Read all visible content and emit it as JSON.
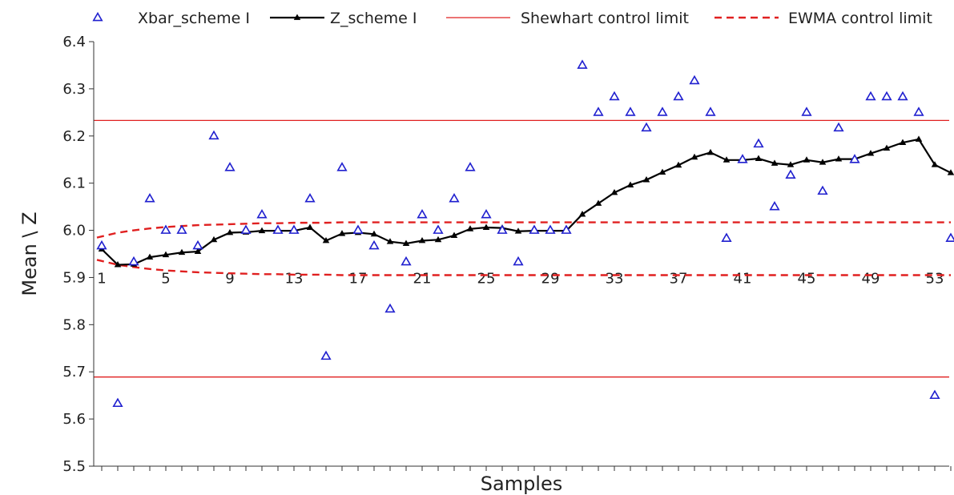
{
  "chart_data": {
    "type": "line",
    "xlabel": "Samples",
    "ylabel": "Mean \\ Z",
    "ylim": [
      5.5,
      6.4
    ],
    "xlim": [
      1,
      54
    ],
    "y_ticks": [
      "5.5",
      "5.6",
      "5.7",
      "5.8",
      "5.9",
      "6.0",
      "6.1",
      "6.2",
      "6.3",
      "6.4"
    ],
    "x_ticks": [
      1,
      5,
      9,
      13,
      17,
      21,
      25,
      29,
      33,
      37,
      41,
      45,
      49,
      53
    ],
    "legend_position": "top",
    "series": [
      {
        "name": "Xbar_scheme I",
        "style": "markers",
        "marker": "open-triangle",
        "color": "#1f1fcf",
        "x": [
          1,
          2,
          3,
          4,
          5,
          6,
          7,
          8,
          9,
          10,
          11,
          12,
          13,
          14,
          15,
          16,
          17,
          18,
          19,
          20,
          21,
          22,
          23,
          24,
          25,
          26,
          27,
          28,
          29,
          30,
          31,
          32,
          33,
          34,
          35,
          36,
          37,
          38,
          39,
          40,
          41,
          42,
          43,
          44,
          45,
          46,
          47,
          48,
          49,
          50,
          51,
          52,
          53,
          54
        ],
        "values": [
          5.967,
          5.633,
          5.933,
          6.067,
          6.0,
          6.0,
          5.967,
          6.2,
          6.133,
          6.0,
          6.033,
          6.0,
          6.0,
          6.067,
          5.733,
          6.133,
          6.0,
          5.967,
          5.833,
          5.933,
          6.033,
          6.0,
          6.067,
          6.133,
          6.033,
          6.0,
          5.933,
          6.0,
          6.0,
          6.0,
          6.35,
          6.25,
          6.283,
          6.25,
          6.217,
          6.25,
          6.283,
          6.317,
          6.25,
          5.983,
          6.15,
          6.183,
          6.05,
          6.117,
          6.25,
          6.083,
          6.217,
          6.15,
          6.283,
          6.283,
          6.283,
          6.25,
          5.65,
          5.983
        ]
      },
      {
        "name": "Z_scheme I",
        "style": "line-markers",
        "marker": "filled-triangle",
        "color": "#000000",
        "x": [
          1,
          2,
          3,
          4,
          5,
          6,
          7,
          8,
          9,
          10,
          11,
          12,
          13,
          14,
          15,
          16,
          17,
          18,
          19,
          20,
          21,
          22,
          23,
          24,
          25,
          26,
          27,
          28,
          29,
          30,
          31,
          32,
          33,
          34,
          35,
          36,
          37,
          38,
          39,
          40,
          41,
          42,
          43,
          44,
          45,
          46,
          47,
          48,
          49,
          50,
          51,
          52,
          53,
          54
        ],
        "values": [
          5.96,
          5.927,
          5.928,
          5.943,
          5.948,
          5.953,
          5.955,
          5.98,
          5.995,
          5.996,
          5.999,
          5.999,
          5.999,
          6.006,
          5.978,
          5.993,
          5.995,
          5.992,
          5.976,
          5.972,
          5.978,
          5.98,
          5.989,
          6.003,
          6.006,
          6.005,
          5.998,
          5.999,
          5.999,
          5.999,
          6.034,
          6.057,
          6.08,
          6.096,
          6.107,
          6.123,
          6.138,
          6.155,
          6.165,
          6.149,
          6.149,
          6.152,
          6.142,
          6.139,
          6.149,
          6.144,
          6.151,
          6.151,
          6.163,
          6.174,
          6.186,
          6.193,
          6.139,
          6.122
        ]
      },
      {
        "name": "Shewhart control limit",
        "style": "line",
        "color": "#e02020",
        "ucl": 6.233,
        "lcl": 5.689
      },
      {
        "name": "EWMA control limit",
        "style": "dashed",
        "color": "#e02020",
        "x": [
          1,
          2,
          3,
          4,
          5,
          6,
          7,
          8,
          9,
          10,
          11,
          12,
          13,
          14,
          15,
          16,
          17,
          18,
          19,
          20,
          21,
          22,
          23,
          24,
          25,
          26,
          27,
          28,
          29,
          30,
          31,
          32,
          33,
          34,
          35,
          36,
          37,
          38,
          39,
          40,
          41,
          42,
          43,
          44,
          45,
          46,
          47,
          48,
          49,
          50,
          51,
          52,
          53,
          54
        ],
        "upper": [
          5.987,
          5.995,
          6.0,
          6.004,
          6.007,
          6.009,
          6.011,
          6.012,
          6.013,
          6.014,
          6.015,
          6.015,
          6.016,
          6.016,
          6.016,
          6.017,
          6.017,
          6.017,
          6.017,
          6.017,
          6.017,
          6.017,
          6.017,
          6.017,
          6.017,
          6.017,
          6.017,
          6.017,
          6.017,
          6.017,
          6.017,
          6.017,
          6.017,
          6.017,
          6.017,
          6.017,
          6.017,
          6.017,
          6.017,
          6.017,
          6.017,
          6.017,
          6.017,
          6.017,
          6.017,
          6.017,
          6.017,
          6.017,
          6.017,
          6.017,
          6.017,
          6.017,
          6.017,
          6.017
        ],
        "lower": [
          5.935,
          5.927,
          5.922,
          5.918,
          5.915,
          5.913,
          5.911,
          5.91,
          5.909,
          5.908,
          5.907,
          5.907,
          5.906,
          5.906,
          5.906,
          5.905,
          5.905,
          5.905,
          5.905,
          5.905,
          5.905,
          5.905,
          5.905,
          5.905,
          5.905,
          5.905,
          5.905,
          5.905,
          5.905,
          5.905,
          5.905,
          5.905,
          5.905,
          5.905,
          5.905,
          5.905,
          5.905,
          5.905,
          5.905,
          5.905,
          5.905,
          5.905,
          5.905,
          5.905,
          5.905,
          5.905,
          5.905,
          5.905,
          5.905,
          5.905,
          5.905,
          5.905,
          5.905,
          5.905
        ]
      }
    ]
  }
}
